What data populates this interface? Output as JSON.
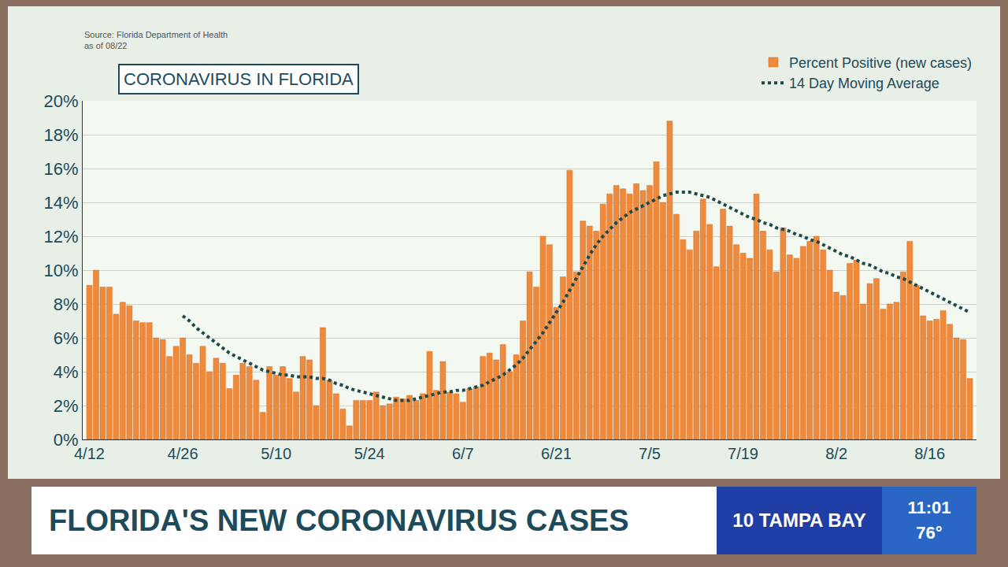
{
  "chart_data": {
    "type": "bar",
    "title": "CORONAVIRUS IN FLORIDA",
    "annotations": [
      "Source: Florida Department of Health",
      "as of 08/22"
    ],
    "categories": [
      "4/12",
      null,
      null,
      null,
      null,
      null,
      null,
      null,
      null,
      null,
      null,
      null,
      null,
      null,
      "4/26",
      null,
      null,
      null,
      null,
      null,
      null,
      null,
      null,
      null,
      null,
      null,
      null,
      null,
      "5/10",
      null,
      null,
      null,
      null,
      null,
      null,
      null,
      null,
      null,
      null,
      null,
      null,
      null,
      "5/24",
      null,
      null,
      null,
      null,
      null,
      null,
      null,
      null,
      null,
      null,
      null,
      null,
      null,
      "6/7",
      null,
      null,
      null,
      null,
      null,
      null,
      null,
      null,
      null,
      null,
      null,
      null,
      null,
      "6/21",
      null,
      null,
      null,
      null,
      null,
      null,
      null,
      null,
      null,
      null,
      null,
      null,
      null,
      "7/5",
      null,
      null,
      null,
      null,
      null,
      null,
      null,
      null,
      null,
      null,
      null,
      null,
      null,
      "7/19",
      null,
      null,
      null,
      null,
      null,
      null,
      null,
      null,
      null,
      null,
      null,
      null,
      null,
      "8/2",
      null,
      null,
      null,
      null,
      null,
      null,
      null,
      null,
      null,
      null,
      null,
      null,
      null,
      "8/16",
      null,
      null,
      null,
      null,
      null,
      null
    ],
    "series": [
      {
        "name": "Percent Positive (new cases)",
        "type": "bar",
        "color": "#ef8a3c",
        "values": [
          9.1,
          10.0,
          9.0,
          9.0,
          7.4,
          8.1,
          7.9,
          7.0,
          6.9,
          6.9,
          6.0,
          5.9,
          4.9,
          5.5,
          6.0,
          5.0,
          4.5,
          5.5,
          4.0,
          4.8,
          4.5,
          3.0,
          3.8,
          4.5,
          4.3,
          3.5,
          1.6,
          4.3,
          3.8,
          4.3,
          3.6,
          2.8,
          4.9,
          4.7,
          2.0,
          6.6,
          3.5,
          2.7,
          1.8,
          0.8,
          2.3,
          2.3,
          2.3,
          2.8,
          2.0,
          2.1,
          2.5,
          2.4,
          2.6,
          2.3,
          2.7,
          5.2,
          2.9,
          4.6,
          2.8,
          2.7,
          2.2,
          3.0,
          3.1,
          4.9,
          5.1,
          4.7,
          5.6,
          4.0,
          5.0,
          7.0,
          9.9,
          9.0,
          12.0,
          11.5,
          7.8,
          9.6,
          15.9,
          9.9,
          12.9,
          12.6,
          12.3,
          13.9,
          14.5,
          15.0,
          14.8,
          14.5,
          15.1,
          14.7,
          15.0,
          16.4,
          14.0,
          18.8,
          13.3,
          11.8,
          11.2,
          12.3,
          14.2,
          12.7,
          10.2,
          13.6,
          12.6,
          11.5,
          11.0,
          10.7,
          14.5,
          12.3,
          11.2,
          9.9,
          12.5,
          10.9,
          10.7,
          11.4,
          11.7,
          12.0,
          11.2,
          10.0,
          8.7,
          8.5,
          10.4,
          10.6,
          8.0,
          9.2,
          9.5,
          7.7,
          8.0,
          8.1,
          9.9,
          11.7,
          9.1,
          7.3,
          7.0,
          7.1,
          7.6,
          6.8,
          6.0,
          5.9,
          3.6
        ]
      },
      {
        "name": "14 Day Moving Average",
        "type": "line",
        "color": "#1f4a4a",
        "line_style": "dotted",
        "values": [
          null,
          null,
          null,
          null,
          null,
          null,
          null,
          null,
          null,
          null,
          null,
          null,
          null,
          null,
          7.3,
          7.0,
          6.6,
          6.3,
          6.0,
          5.7,
          5.4,
          5.1,
          4.9,
          4.7,
          4.5,
          4.3,
          4.1,
          4.0,
          3.9,
          3.8,
          3.8,
          3.7,
          3.7,
          3.7,
          3.6,
          3.6,
          3.5,
          3.3,
          3.2,
          3.0,
          2.9,
          2.8,
          2.7,
          2.6,
          2.5,
          2.4,
          2.3,
          2.3,
          2.3,
          2.4,
          2.5,
          2.6,
          2.7,
          2.8,
          2.8,
          2.9,
          2.9,
          3.0,
          3.1,
          3.2,
          3.4,
          3.6,
          3.8,
          4.1,
          4.4,
          4.8,
          5.3,
          5.8,
          6.3,
          6.9,
          7.5,
          8.1,
          8.8,
          9.5,
          10.2,
          10.9,
          11.5,
          12.0,
          12.4,
          12.8,
          13.1,
          13.4,
          13.6,
          13.8,
          14.0,
          14.2,
          14.4,
          14.5,
          14.6,
          14.6,
          14.6,
          14.5,
          14.4,
          14.3,
          14.1,
          13.9,
          13.7,
          13.5,
          13.3,
          13.1,
          13.0,
          12.8,
          12.7,
          12.5,
          12.4,
          12.3,
          12.1,
          12.0,
          11.8,
          11.7,
          11.5,
          11.3,
          11.1,
          10.9,
          10.8,
          10.6,
          10.4,
          10.3,
          10.1,
          9.9,
          9.8,
          9.6,
          9.5,
          9.3,
          9.1,
          8.9,
          8.7,
          8.5,
          8.3,
          8.1,
          7.9,
          7.7,
          7.5
        ]
      }
    ],
    "ylim": [
      0,
      20
    ],
    "yticks": [
      {
        "value": 0,
        "label": "0%"
      },
      {
        "value": 2,
        "label": "2%"
      },
      {
        "value": 4,
        "label": "4%"
      },
      {
        "value": 6,
        "label": "6%"
      },
      {
        "value": 8,
        "label": "8%"
      },
      {
        "value": 10,
        "label": "10%"
      },
      {
        "value": 12,
        "label": "12%"
      },
      {
        "value": 14,
        "label": "14%"
      },
      {
        "value": 16,
        "label": "16%"
      },
      {
        "value": 18,
        "label": "18%"
      },
      {
        "value": 20,
        "label": "20%"
      }
    ],
    "grid": true,
    "legend": "top right"
  },
  "banner": {
    "headline": "FLORIDA'S NEW CORONAVIRUS CASES",
    "station": "10 TAMPA BAY",
    "time": "11:01",
    "temperature": "76°"
  }
}
